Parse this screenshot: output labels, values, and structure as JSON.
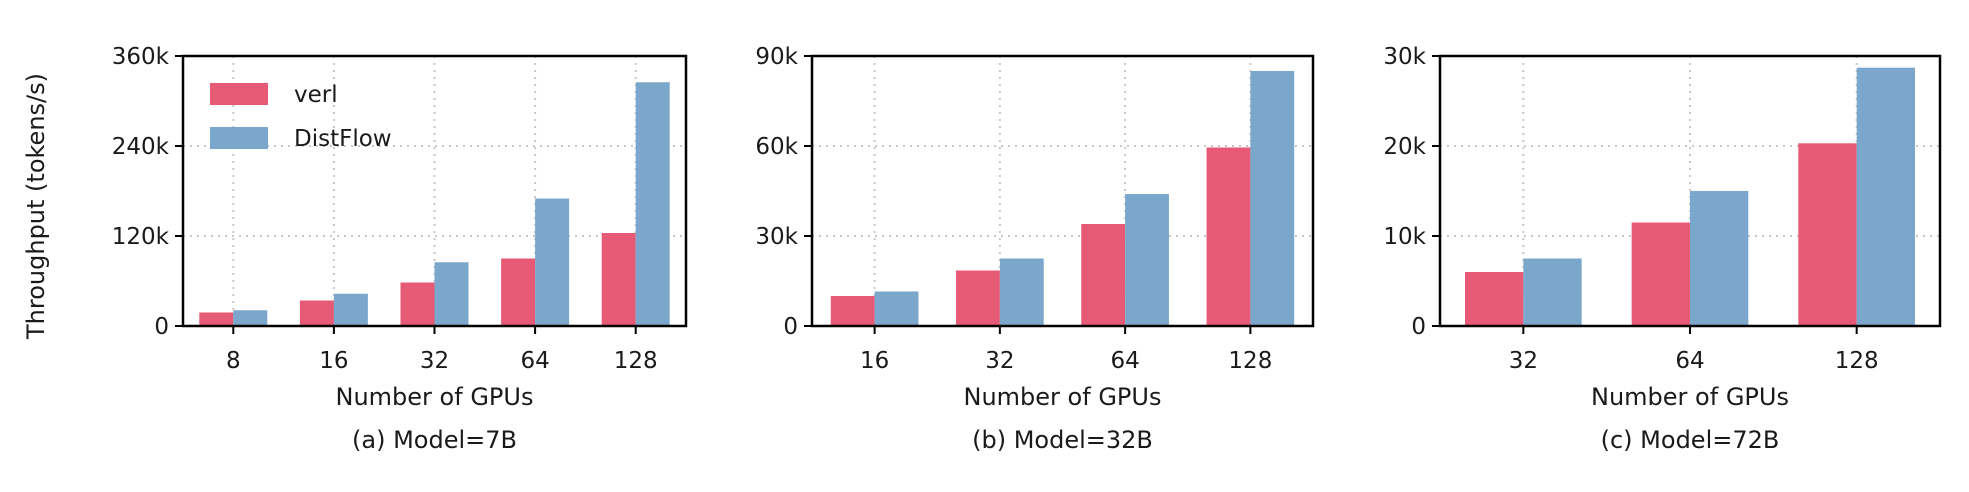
{
  "figure": {
    "ylabel": "Throughput (tokens/s)",
    "legend": {
      "placement": "top-left of first panel",
      "entries": [
        "verl",
        "DistFlow"
      ]
    },
    "colors": {
      "verl": "#e65a76",
      "DistFlow": "#7ba7cc",
      "grid": "#c8c8c8",
      "axis": "#000000"
    }
  },
  "chart_data": [
    {
      "type": "bar",
      "caption": "(a) Model=7B",
      "xlabel": "Number of GPUs",
      "ylabel": "Throughput (tokens/s)",
      "categories": [
        "8",
        "16",
        "32",
        "64",
        "128"
      ],
      "ylim": [
        0,
        360000
      ],
      "yticks": [
        0,
        120000,
        240000,
        360000
      ],
      "ytick_labels": [
        "0",
        "120k",
        "240k",
        "360k"
      ],
      "grid": true,
      "series": [
        {
          "name": "verl",
          "values": [
            18000,
            34000,
            58000,
            90000,
            124000
          ]
        },
        {
          "name": "DistFlow",
          "values": [
            21000,
            43000,
            85000,
            170000,
            325000
          ]
        }
      ]
    },
    {
      "type": "bar",
      "caption": "(b) Model=32B",
      "xlabel": "Number of GPUs",
      "categories": [
        "16",
        "32",
        "64",
        "128"
      ],
      "ylim": [
        0,
        90000
      ],
      "yticks": [
        0,
        30000,
        60000,
        90000
      ],
      "ytick_labels": [
        "0",
        "30k",
        "60k",
        "90k"
      ],
      "grid": true,
      "series": [
        {
          "name": "verl",
          "values": [
            10000,
            18500,
            34000,
            59500
          ]
        },
        {
          "name": "DistFlow",
          "values": [
            11500,
            22500,
            44000,
            85000
          ]
        }
      ]
    },
    {
      "type": "bar",
      "caption": "(c) Model=72B",
      "xlabel": "Number of GPUs",
      "categories": [
        "32",
        "64",
        "128"
      ],
      "ylim": [
        0,
        30000
      ],
      "yticks": [
        0,
        10000,
        20000,
        30000
      ],
      "ytick_labels": [
        "0",
        "10k",
        "20k",
        "30k"
      ],
      "grid": true,
      "series": [
        {
          "name": "verl",
          "values": [
            6000,
            11500,
            20300
          ]
        },
        {
          "name": "DistFlow",
          "values": [
            7500,
            15000,
            28700
          ]
        }
      ]
    }
  ]
}
